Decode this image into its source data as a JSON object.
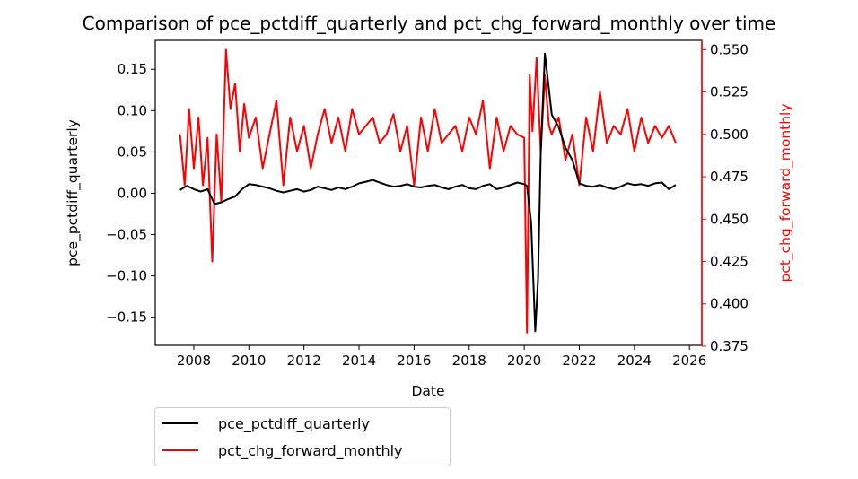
{
  "colors": {
    "series1": "#000000",
    "series2": "#ff0000",
    "axis": "#000000"
  },
  "chart_data": {
    "type": "line",
    "title": "Comparison of pce_pctdiff_quarterly and pct_chg_forward_monthly over time",
    "xlabel": "Date",
    "ylabel_left": "pce_pctdiff_quarterly",
    "ylabel_right": "pct_chg_forward_monthly",
    "xlim": [
      2006.6,
      2026.45
    ],
    "ylim_left": [
      -0.184,
      0.185
    ],
    "ylim_right": [
      0.3755,
      0.5555
    ],
    "x_ticks": [
      "2008",
      "2010",
      "2012",
      "2014",
      "2016",
      "2018",
      "2020",
      "2022",
      "2024",
      "2026"
    ],
    "y_left_ticks": [
      "0.15",
      "0.10",
      "0.05",
      "0.00",
      "−0.05",
      "−0.10",
      "−0.15"
    ],
    "y_right_ticks": [
      "0.550",
      "0.525",
      "0.500",
      "0.475",
      "0.450",
      "0.425",
      "0.400",
      "0.375"
    ],
    "legend_position": "below-left",
    "grid": false,
    "series": [
      {
        "name": "pce_pctdiff_quarterly",
        "axis": "left",
        "color": "#000000",
        "x": [
          2007.5,
          2007.75,
          2008.0,
          2008.25,
          2008.5,
          2008.75,
          2009.0,
          2009.25,
          2009.5,
          2009.75,
          2010.0,
          2010.25,
          2010.5,
          2010.75,
          2011.0,
          2011.25,
          2011.5,
          2011.75,
          2012.0,
          2012.25,
          2012.5,
          2012.75,
          2013.0,
          2013.25,
          2013.5,
          2013.75,
          2014.0,
          2014.25,
          2014.5,
          2014.75,
          2015.0,
          2015.25,
          2015.5,
          2015.75,
          2016.0,
          2016.25,
          2016.5,
          2016.75,
          2017.0,
          2017.25,
          2017.5,
          2017.75,
          2018.0,
          2018.25,
          2018.5,
          2018.75,
          2019.0,
          2019.25,
          2019.5,
          2019.75,
          2020.0,
          2020.1,
          2020.25,
          2020.4,
          2020.5,
          2020.6,
          2020.75,
          2020.9,
          2021.0,
          2021.25,
          2021.5,
          2021.75,
          2022.0,
          2022.25,
          2022.5,
          2022.75,
          2023.0,
          2023.25,
          2023.5,
          2023.75,
          2024.0,
          2024.25,
          2024.5,
          2024.75,
          2025.0,
          2025.25,
          2025.5
        ],
        "y": [
          0.004,
          0.009,
          0.005,
          0.002,
          0.005,
          -0.013,
          -0.011,
          -0.007,
          -0.004,
          0.005,
          0.011,
          0.01,
          0.008,
          0.006,
          0.003,
          0.001,
          0.003,
          0.005,
          0.002,
          0.004,
          0.008,
          0.006,
          0.004,
          0.007,
          0.005,
          0.008,
          0.012,
          0.014,
          0.016,
          0.013,
          0.01,
          0.008,
          0.009,
          0.011,
          0.008,
          0.007,
          0.009,
          0.01,
          0.007,
          0.005,
          0.008,
          0.01,
          0.006,
          0.005,
          0.009,
          0.011,
          0.005,
          0.007,
          0.01,
          0.013,
          0.011,
          0.009,
          -0.035,
          -0.167,
          -0.105,
          0.048,
          0.169,
          0.125,
          0.095,
          0.08,
          0.055,
          0.04,
          0.012,
          0.009,
          0.008,
          0.01,
          0.007,
          0.005,
          0.008,
          0.012,
          0.01,
          0.011,
          0.009,
          0.012,
          0.013,
          0.005,
          0.01
        ]
      },
      {
        "name": "pct_chg_forward_monthly",
        "axis": "right",
        "color": "#ff0000",
        "x": [
          2007.5,
          2007.67,
          2007.83,
          2008.0,
          2008.17,
          2008.33,
          2008.5,
          2008.67,
          2008.83,
          2009.0,
          2009.17,
          2009.33,
          2009.5,
          2009.67,
          2009.83,
          2010.0,
          2010.25,
          2010.5,
          2010.75,
          2011.0,
          2011.25,
          2011.5,
          2011.75,
          2012.0,
          2012.25,
          2012.5,
          2012.75,
          2013.0,
          2013.25,
          2013.5,
          2013.75,
          2014.0,
          2014.25,
          2014.5,
          2014.75,
          2015.0,
          2015.25,
          2015.5,
          2015.75,
          2016.0,
          2016.25,
          2016.5,
          2016.75,
          2017.0,
          2017.25,
          2017.5,
          2017.75,
          2018.0,
          2018.25,
          2018.5,
          2018.75,
          2019.0,
          2019.25,
          2019.5,
          2019.75,
          2020.0,
          2020.1,
          2020.2,
          2020.3,
          2020.45,
          2020.6,
          2020.75,
          2020.9,
          2021.0,
          2021.25,
          2021.5,
          2021.75,
          2022.0,
          2022.25,
          2022.5,
          2022.75,
          2023.0,
          2023.25,
          2023.5,
          2023.75,
          2024.0,
          2024.25,
          2024.5,
          2024.75,
          2025.0,
          2025.25,
          2025.5
        ],
        "y": [
          0.5,
          0.47,
          0.515,
          0.48,
          0.51,
          0.47,
          0.498,
          0.425,
          0.5,
          0.46,
          0.55,
          0.515,
          0.53,
          0.49,
          0.518,
          0.498,
          0.51,
          0.48,
          0.5,
          0.52,
          0.47,
          0.51,
          0.49,
          0.505,
          0.48,
          0.5,
          0.515,
          0.495,
          0.51,
          0.49,
          0.515,
          0.5,
          0.505,
          0.51,
          0.495,
          0.5,
          0.512,
          0.49,
          0.505,
          0.47,
          0.51,
          0.49,
          0.515,
          0.495,
          0.5,
          0.505,
          0.49,
          0.51,
          0.5,
          0.52,
          0.48,
          0.51,
          0.49,
          0.505,
          0.5,
          0.498,
          0.383,
          0.535,
          0.502,
          0.545,
          0.49,
          0.535,
          0.505,
          0.5,
          0.51,
          0.485,
          0.5,
          0.47,
          0.51,
          0.49,
          0.525,
          0.495,
          0.505,
          0.5,
          0.515,
          0.49,
          0.51,
          0.495,
          0.505,
          0.498,
          0.505,
          0.495
        ]
      }
    ]
  }
}
